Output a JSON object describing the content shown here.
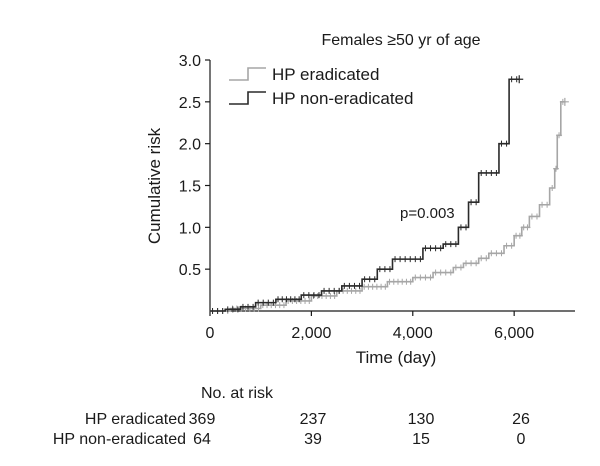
{
  "chart_data": {
    "type": "line",
    "title": "Females ≥50 yr of age",
    "xlabel": "Time (day)",
    "ylabel": "Cumulative risk",
    "xlim": [
      0,
      7200
    ],
    "ylim": [
      0,
      3.0
    ],
    "x_ticks": [
      0,
      2000,
      4000,
      6000
    ],
    "x_tick_labels": [
      "0",
      "2,000",
      "4,000",
      "6,000"
    ],
    "y_ticks": [
      0.5,
      1.0,
      1.5,
      2.0,
      2.5,
      3.0
    ],
    "y_tick_labels": [
      "0.5",
      "1.0",
      "1.5",
      "2.0",
      "2.5",
      "3.0"
    ],
    "grid": false,
    "legend_position": "top-left",
    "annotation": "p=0.003",
    "series": [
      {
        "name": "HP eradicated",
        "color": "#a6a6a6",
        "x": [
          0,
          400,
          1000,
          1500,
          2000,
          2500,
          3000,
          3500,
          4000,
          4400,
          4800,
          5000,
          5300,
          5500,
          5800,
          6000,
          6150,
          6300,
          6500,
          6600,
          6700,
          6800,
          6850,
          6920,
          7000
        ],
        "y": [
          0,
          0.03,
          0.07,
          0.12,
          0.18,
          0.24,
          0.29,
          0.35,
          0.4,
          0.46,
          0.52,
          0.57,
          0.63,
          0.69,
          0.78,
          0.9,
          1.0,
          1.13,
          1.27,
          1.27,
          1.47,
          1.7,
          2.1,
          2.5,
          2.5
        ],
        "censor_marks": true
      },
      {
        "name": "HP non-eradicated",
        "color": "#2a2a2a",
        "x": [
          0,
          300,
          600,
          900,
          1300,
          1800,
          2200,
          2600,
          3000,
          3300,
          3600,
          4000,
          4200,
          4600,
          4900,
          5100,
          5300,
          5700,
          5900,
          6100
        ],
        "y": [
          0,
          0.02,
          0.05,
          0.1,
          0.14,
          0.19,
          0.24,
          0.3,
          0.38,
          0.5,
          0.62,
          0.62,
          0.75,
          0.8,
          1.0,
          1.3,
          1.65,
          2.0,
          2.77,
          2.77
        ],
        "censor_marks": true
      }
    ]
  },
  "risk_table": {
    "header": "No. at risk",
    "rows": [
      {
        "label": "HP eradicated",
        "values": [
          "369",
          "237",
          "130",
          "26"
        ]
      },
      {
        "label": "HP non-eradicated",
        "values": [
          "64",
          "39",
          "15",
          "0"
        ]
      }
    ]
  }
}
